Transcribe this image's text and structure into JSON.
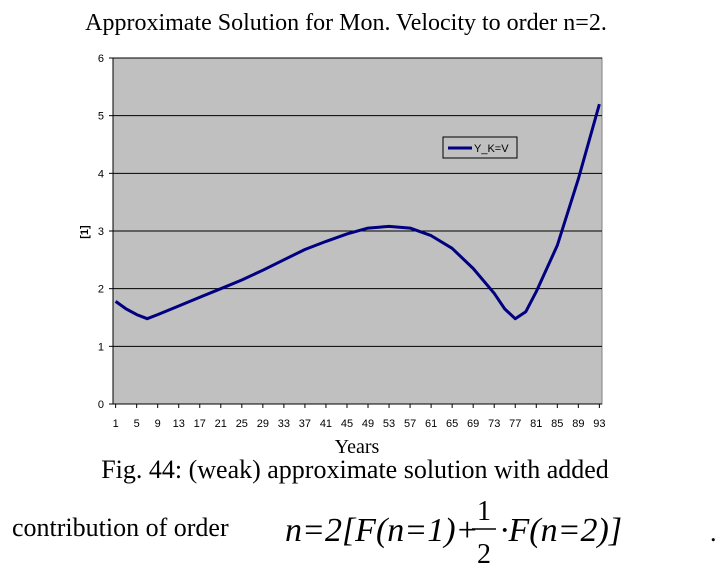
{
  "chart_data": {
    "type": "line",
    "title": "Approximate Solution for Mon. Velocity to order n=2.",
    "x_label": "Years",
    "y_label": "[1]",
    "x": [
      1,
      3,
      5,
      7,
      9,
      13,
      17,
      21,
      25,
      29,
      33,
      37,
      41,
      45,
      49,
      53,
      57,
      61,
      65,
      69,
      73,
      75,
      77,
      79,
      81,
      85,
      89,
      93
    ],
    "series": [
      {
        "name": "Y_K=V",
        "color": "#000080",
        "values": [
          1.78,
          1.65,
          1.55,
          1.48,
          1.55,
          1.7,
          1.85,
          2.0,
          2.15,
          2.32,
          2.5,
          2.68,
          2.82,
          2.95,
          3.05,
          3.08,
          3.05,
          2.92,
          2.7,
          2.35,
          1.92,
          1.65,
          1.48,
          1.6,
          1.95,
          2.75,
          3.9,
          5.2
        ]
      }
    ],
    "xlim": [
      0.5,
      93.5
    ],
    "xticks": [
      1,
      5,
      9,
      13,
      17,
      21,
      25,
      29,
      33,
      37,
      41,
      45,
      49,
      53,
      57,
      61,
      65,
      69,
      73,
      77,
      81,
      85,
      89,
      93
    ],
    "ylim": [
      0,
      6
    ],
    "yticks": [
      0,
      1,
      2,
      3,
      4,
      5,
      6
    ],
    "grid": true,
    "plot_background": "#c0c0c0",
    "legend_position": "upper-right"
  },
  "caption": {
    "line1": "Fig. 44: (weak) approximate solution with added",
    "line2": "contribution of order",
    "formula_left": "n=2[F(n=1)+",
    "fraction_numerator": "1",
    "fraction_denominator": "2",
    "formula_right": "·F(n=2)]",
    "end": "."
  }
}
